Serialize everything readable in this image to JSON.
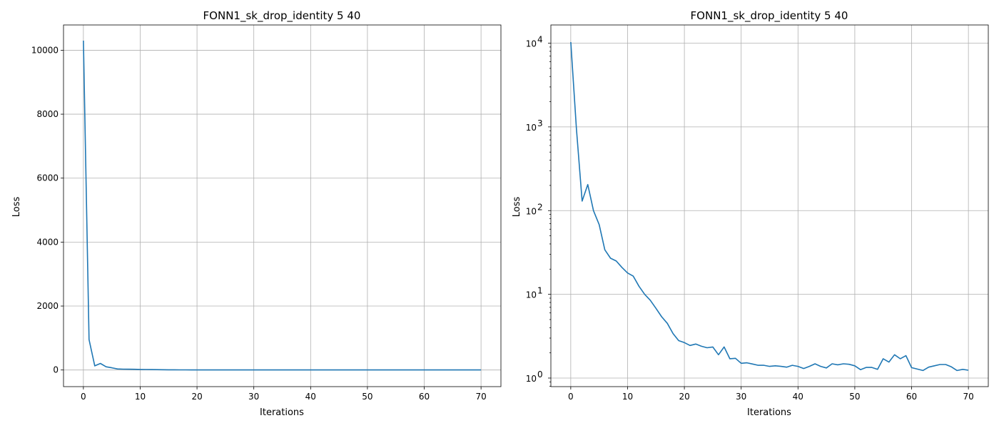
{
  "colors": {
    "line": "#1f77b4",
    "grid": "#b0b0b0",
    "axes": "#000000"
  },
  "chart_data": [
    {
      "type": "line",
      "title": "FONN1_sk_drop_identity 5 40",
      "xlabel": "Iterations",
      "ylabel": "Loss",
      "yscale": "linear",
      "grid": true,
      "xlim": [
        -3.5,
        73.5
      ],
      "ylim": [
        -520,
        10790
      ],
      "xticks": [
        0,
        10,
        20,
        30,
        40,
        50,
        60,
        70
      ],
      "xtick_labels": [
        "0",
        "10",
        "20",
        "30",
        "40",
        "50",
        "60",
        "70"
      ],
      "yticks": [
        0,
        2000,
        4000,
        6000,
        8000,
        10000
      ],
      "ytick_labels": [
        "0",
        "2000",
        "4000",
        "6000",
        "8000",
        "10000"
      ],
      "series": [
        {
          "x": [
            0,
            1,
            2,
            3,
            4,
            5,
            6,
            7,
            8,
            9,
            10,
            11,
            12,
            13,
            14,
            15,
            16,
            17,
            18,
            19,
            20,
            21,
            22,
            23,
            24,
            25,
            26,
            27,
            28,
            29,
            30,
            31,
            32,
            33,
            34,
            35,
            36,
            37,
            38,
            39,
            40,
            41,
            42,
            43,
            44,
            45,
            46,
            47,
            48,
            49,
            50,
            51,
            52,
            53,
            54,
            55,
            56,
            57,
            58,
            59,
            60,
            61,
            62,
            63,
            64,
            65,
            66,
            67,
            68,
            69,
            70
          ],
          "y": [
            10300,
            950,
            130,
            205,
            100,
            68,
            34,
            27,
            25,
            21,
            18,
            16.5,
            12.5,
            10,
            8.5,
            6.8,
            5.4,
            4.5,
            3.4,
            2.8,
            2.65,
            2.45,
            2.55,
            2.4,
            2.3,
            2.35,
            1.9,
            2.35,
            1.7,
            1.72,
            1.5,
            1.52,
            1.47,
            1.42,
            1.42,
            1.38,
            1.4,
            1.38,
            1.35,
            1.42,
            1.38,
            1.3,
            1.38,
            1.48,
            1.38,
            1.32,
            1.48,
            1.44,
            1.48,
            1.46,
            1.4,
            1.26,
            1.34,
            1.34,
            1.27,
            1.7,
            1.55,
            1.9,
            1.7,
            1.85,
            1.33,
            1.28,
            1.23,
            1.35,
            1.4,
            1.45,
            1.45,
            1.36,
            1.23,
            1.27,
            1.24
          ]
        }
      ]
    },
    {
      "type": "line",
      "title": "FONN1_sk_drop_identity 5 40",
      "xlabel": "Iterations",
      "ylabel": "Loss",
      "yscale": "log",
      "grid": true,
      "xlim": [
        -3.5,
        73.5
      ],
      "ylim": [
        0.79,
        16500
      ],
      "xticks": [
        0,
        10,
        20,
        30,
        40,
        50,
        60,
        70
      ],
      "xtick_labels": [
        "0",
        "10",
        "20",
        "30",
        "40",
        "50",
        "60",
        "70"
      ],
      "yticks": [
        1,
        10,
        100,
        1000,
        10000
      ],
      "ytick_bases": [
        "10",
        "10",
        "10",
        "10",
        "10"
      ],
      "ytick_exponents": [
        "0",
        "1",
        "2",
        "3",
        "4"
      ],
      "series": [
        {
          "x": [
            0,
            1,
            2,
            3,
            4,
            5,
            6,
            7,
            8,
            9,
            10,
            11,
            12,
            13,
            14,
            15,
            16,
            17,
            18,
            19,
            20,
            21,
            22,
            23,
            24,
            25,
            26,
            27,
            28,
            29,
            30,
            31,
            32,
            33,
            34,
            35,
            36,
            37,
            38,
            39,
            40,
            41,
            42,
            43,
            44,
            45,
            46,
            47,
            48,
            49,
            50,
            51,
            52,
            53,
            54,
            55,
            56,
            57,
            58,
            59,
            60,
            61,
            62,
            63,
            64,
            65,
            66,
            67,
            68,
            69,
            70
          ],
          "y": [
            10300,
            950,
            130,
            205,
            100,
            68,
            34,
            27,
            25,
            21,
            18,
            16.5,
            12.5,
            10,
            8.5,
            6.8,
            5.4,
            4.5,
            3.4,
            2.8,
            2.65,
            2.45,
            2.55,
            2.4,
            2.3,
            2.35,
            1.9,
            2.35,
            1.7,
            1.72,
            1.5,
            1.52,
            1.47,
            1.42,
            1.42,
            1.38,
            1.4,
            1.38,
            1.35,
            1.42,
            1.38,
            1.3,
            1.38,
            1.48,
            1.38,
            1.32,
            1.48,
            1.44,
            1.48,
            1.46,
            1.4,
            1.26,
            1.34,
            1.34,
            1.27,
            1.7,
            1.55,
            1.9,
            1.7,
            1.85,
            1.33,
            1.28,
            1.23,
            1.35,
            1.4,
            1.45,
            1.45,
            1.36,
            1.23,
            1.27,
            1.24
          ]
        }
      ]
    }
  ]
}
